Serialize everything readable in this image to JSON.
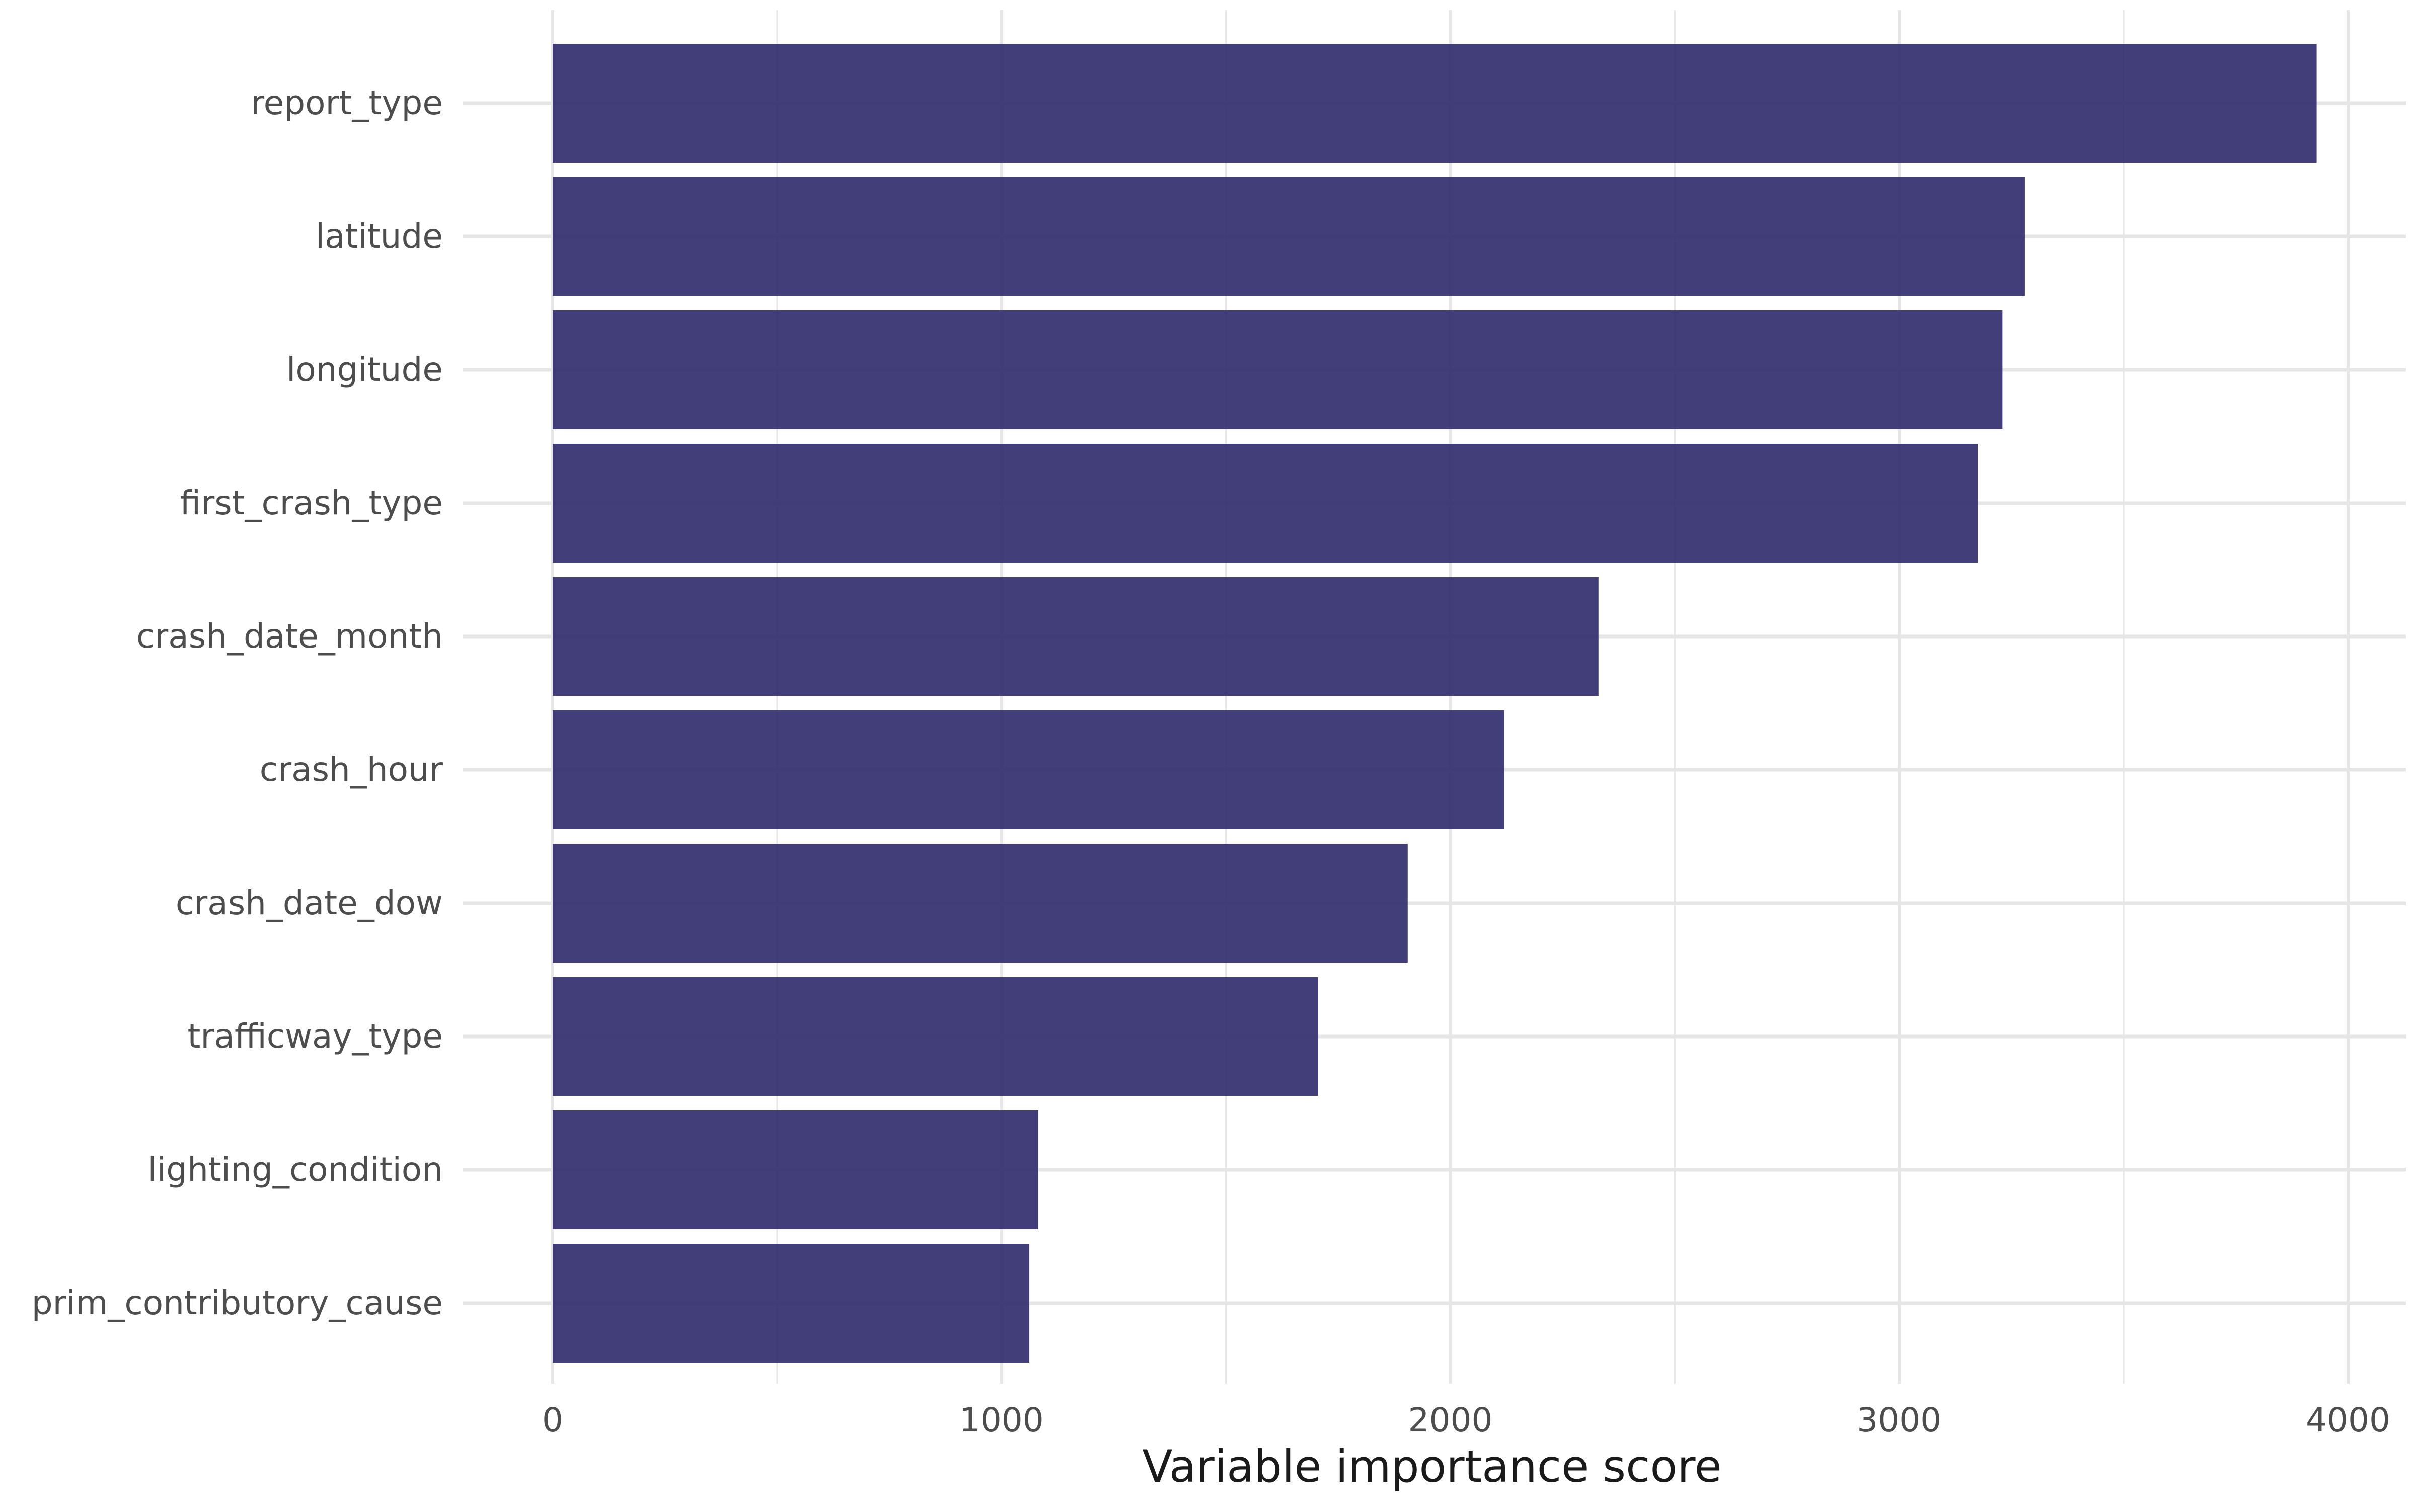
{
  "chart_data": {
    "type": "bar",
    "orientation": "horizontal",
    "categories": [
      "report_type",
      "latitude",
      "longitude",
      "first_crash_type",
      "crash_date_month",
      "crash_hour",
      "crash_date_dow",
      "trafficway_type",
      "lighting_condition",
      "prim_contributory_cause"
    ],
    "values": [
      3930,
      3280,
      3230,
      3175,
      2330,
      2120,
      1905,
      1705,
      1082,
      1062
    ],
    "xlabel": "Variable importance score",
    "ylabel": "",
    "xlim": [
      0,
      4000
    ],
    "x_ticks": [
      0,
      1000,
      2000,
      3000,
      4000
    ],
    "x_tick_labels": [
      "0",
      "1000",
      "2000",
      "3000",
      "4000"
    ],
    "grid": true,
    "legend": "none",
    "bar_color": "#2e296a",
    "grid_color": "#e6e6e6"
  }
}
